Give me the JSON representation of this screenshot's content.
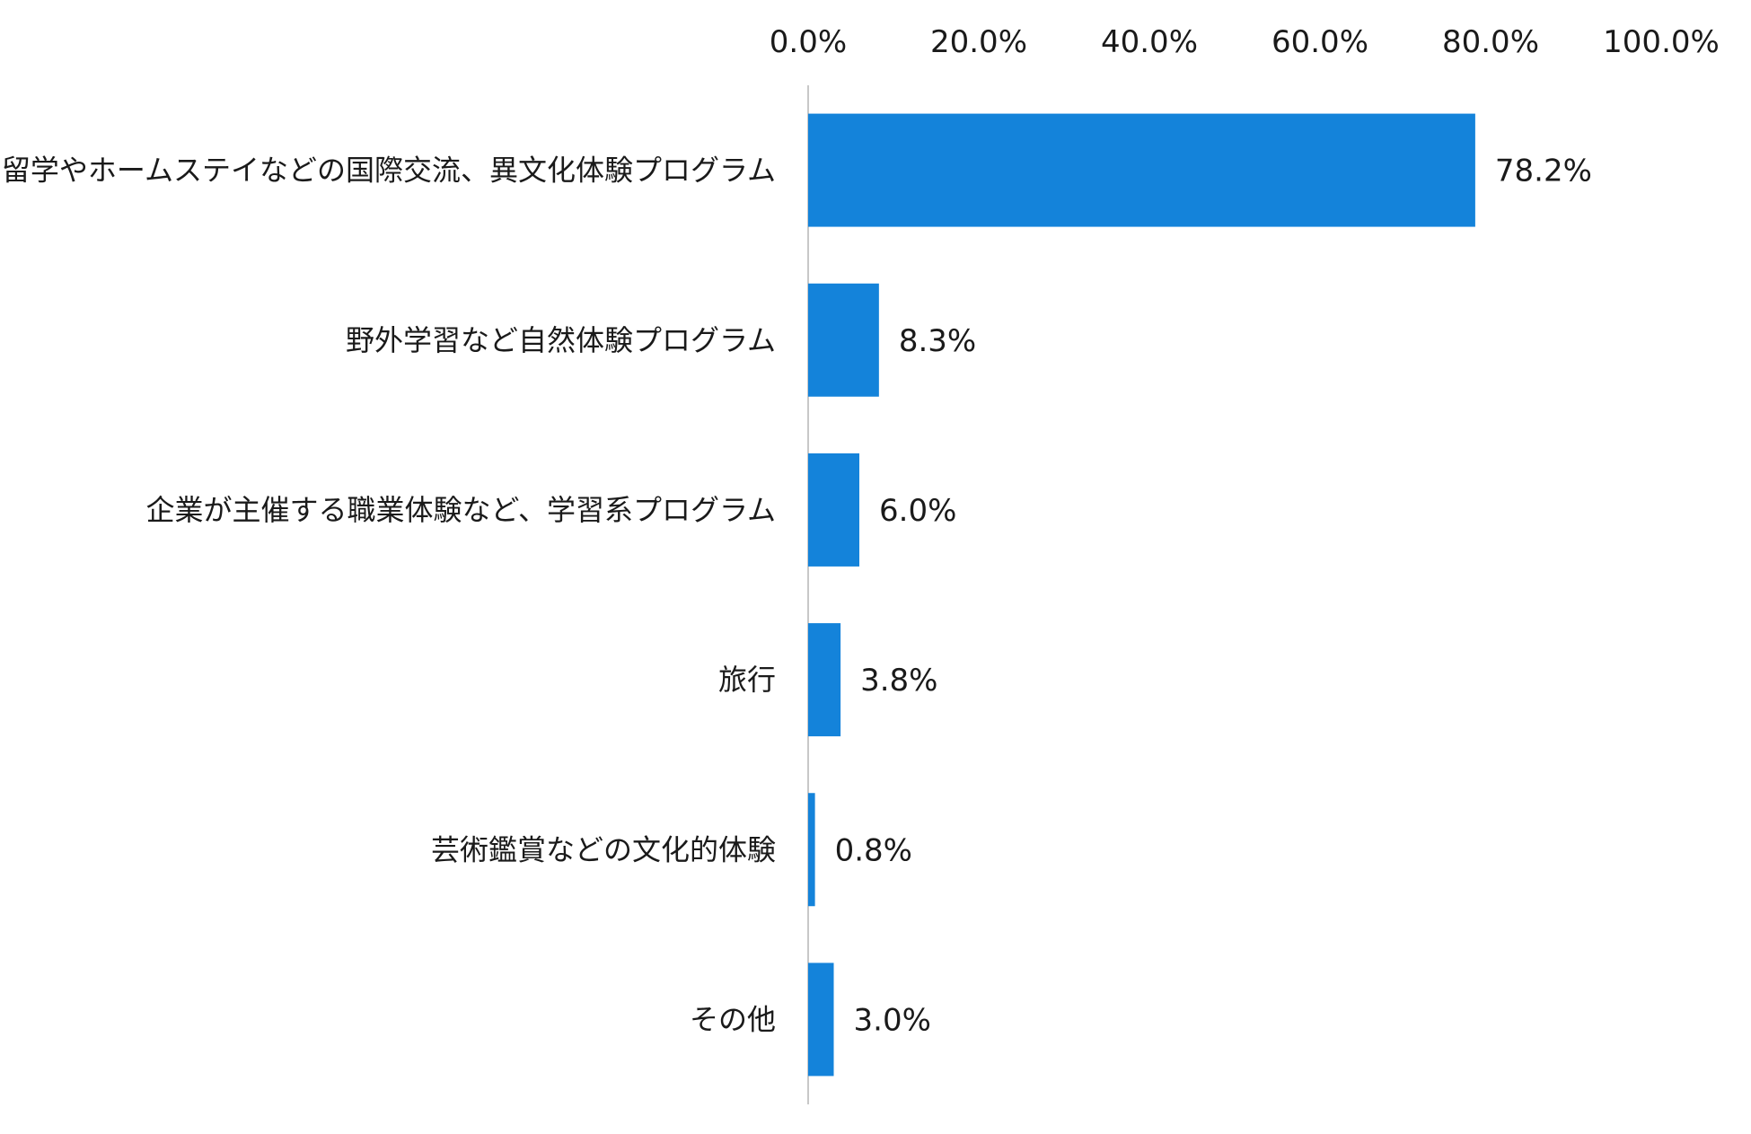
{
  "chart_data": {
    "type": "bar",
    "orientation": "horizontal",
    "title": "",
    "xlabel": "",
    "ylabel": "",
    "xlim": [
      0,
      100
    ],
    "x_ticks": [
      "0.0%",
      "20.0%",
      "40.0%",
      "60.0%",
      "80.0%",
      "100.0%"
    ],
    "x_axis_position": "top",
    "grid": false,
    "legend": "none",
    "categories": [
      "留学やホームステイなどの国際交流、異文化体験プログラム",
      "野外学習など自然体験プログラム",
      "企業が主催する職業体験など、学習系プログラム",
      "旅行",
      "芸術鑑賞などの文化的体験",
      "その他"
    ],
    "values": [
      78.2,
      8.3,
      6.0,
      3.8,
      0.8,
      3.0
    ],
    "data_labels": [
      "78.2%",
      "8.3%",
      "6.0%",
      "3.8%",
      "0.8%",
      "3.0%"
    ],
    "bar_color": "#1483DA"
  }
}
